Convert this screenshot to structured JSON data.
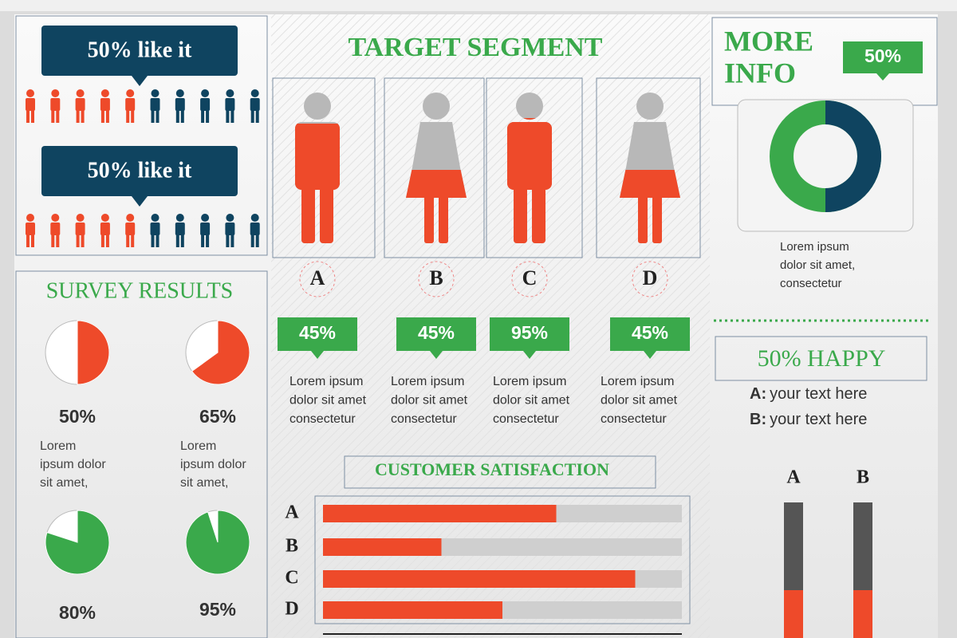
{
  "left": {
    "banners": [
      {
        "label": "50% like it"
      },
      {
        "label": "50% like it"
      }
    ],
    "survey": {
      "title": "SURVEY RESULTS",
      "items": [
        {
          "percent": 50,
          "label": "50%",
          "text": [
            "Lorem",
            "ipsum dolor",
            "sit amet,"
          ]
        },
        {
          "percent": 65,
          "label": "65%",
          "text": [
            "Lorem",
            "ipsum dolor",
            "sit amet,"
          ]
        },
        {
          "percent": 80,
          "label": "80%"
        },
        {
          "percent": 95,
          "label": "95%"
        }
      ]
    }
  },
  "target": {
    "title": "TARGET SEGMENT",
    "segments": [
      {
        "letter": "A",
        "percent": 45,
        "label": "45%",
        "text": [
          "Lorem ipsum",
          "dolor sit amet",
          "consectetur"
        ]
      },
      {
        "letter": "B",
        "percent": 45,
        "label": "45%",
        "text": [
          "Lorem ipsum",
          "dolor sit amet",
          "consectetur"
        ]
      },
      {
        "letter": "C",
        "percent": 95,
        "label": "95%",
        "text": [
          "Lorem ipsum",
          "dolor sit amet",
          "consectetur"
        ]
      },
      {
        "letter": "D",
        "percent": 45,
        "label": "45%",
        "text": [
          "Lorem ipsum",
          "dolor sit amet",
          "consectetur"
        ]
      }
    ]
  },
  "customer_satisfaction": {
    "title": "CUSTOMER SATISFACTION",
    "bars": [
      {
        "label": "A",
        "value": 65
      },
      {
        "label": "B",
        "value": 33
      },
      {
        "label": "C",
        "value": 87
      },
      {
        "label": "D",
        "value": 50
      }
    ]
  },
  "more_info": {
    "title": [
      "MORE",
      "INFO"
    ],
    "badge": "50%",
    "donut_percent": 50,
    "text": [
      "Lorem ipsum",
      "dolor sit amet,",
      "consectetur"
    ]
  },
  "happy": {
    "title": "50% HAPPY",
    "lines": [
      {
        "key": "A:",
        "text": "your text here"
      },
      {
        "key": "B:",
        "text": "your text here"
      }
    ],
    "columns": [
      "A",
      "B"
    ]
  }
}
